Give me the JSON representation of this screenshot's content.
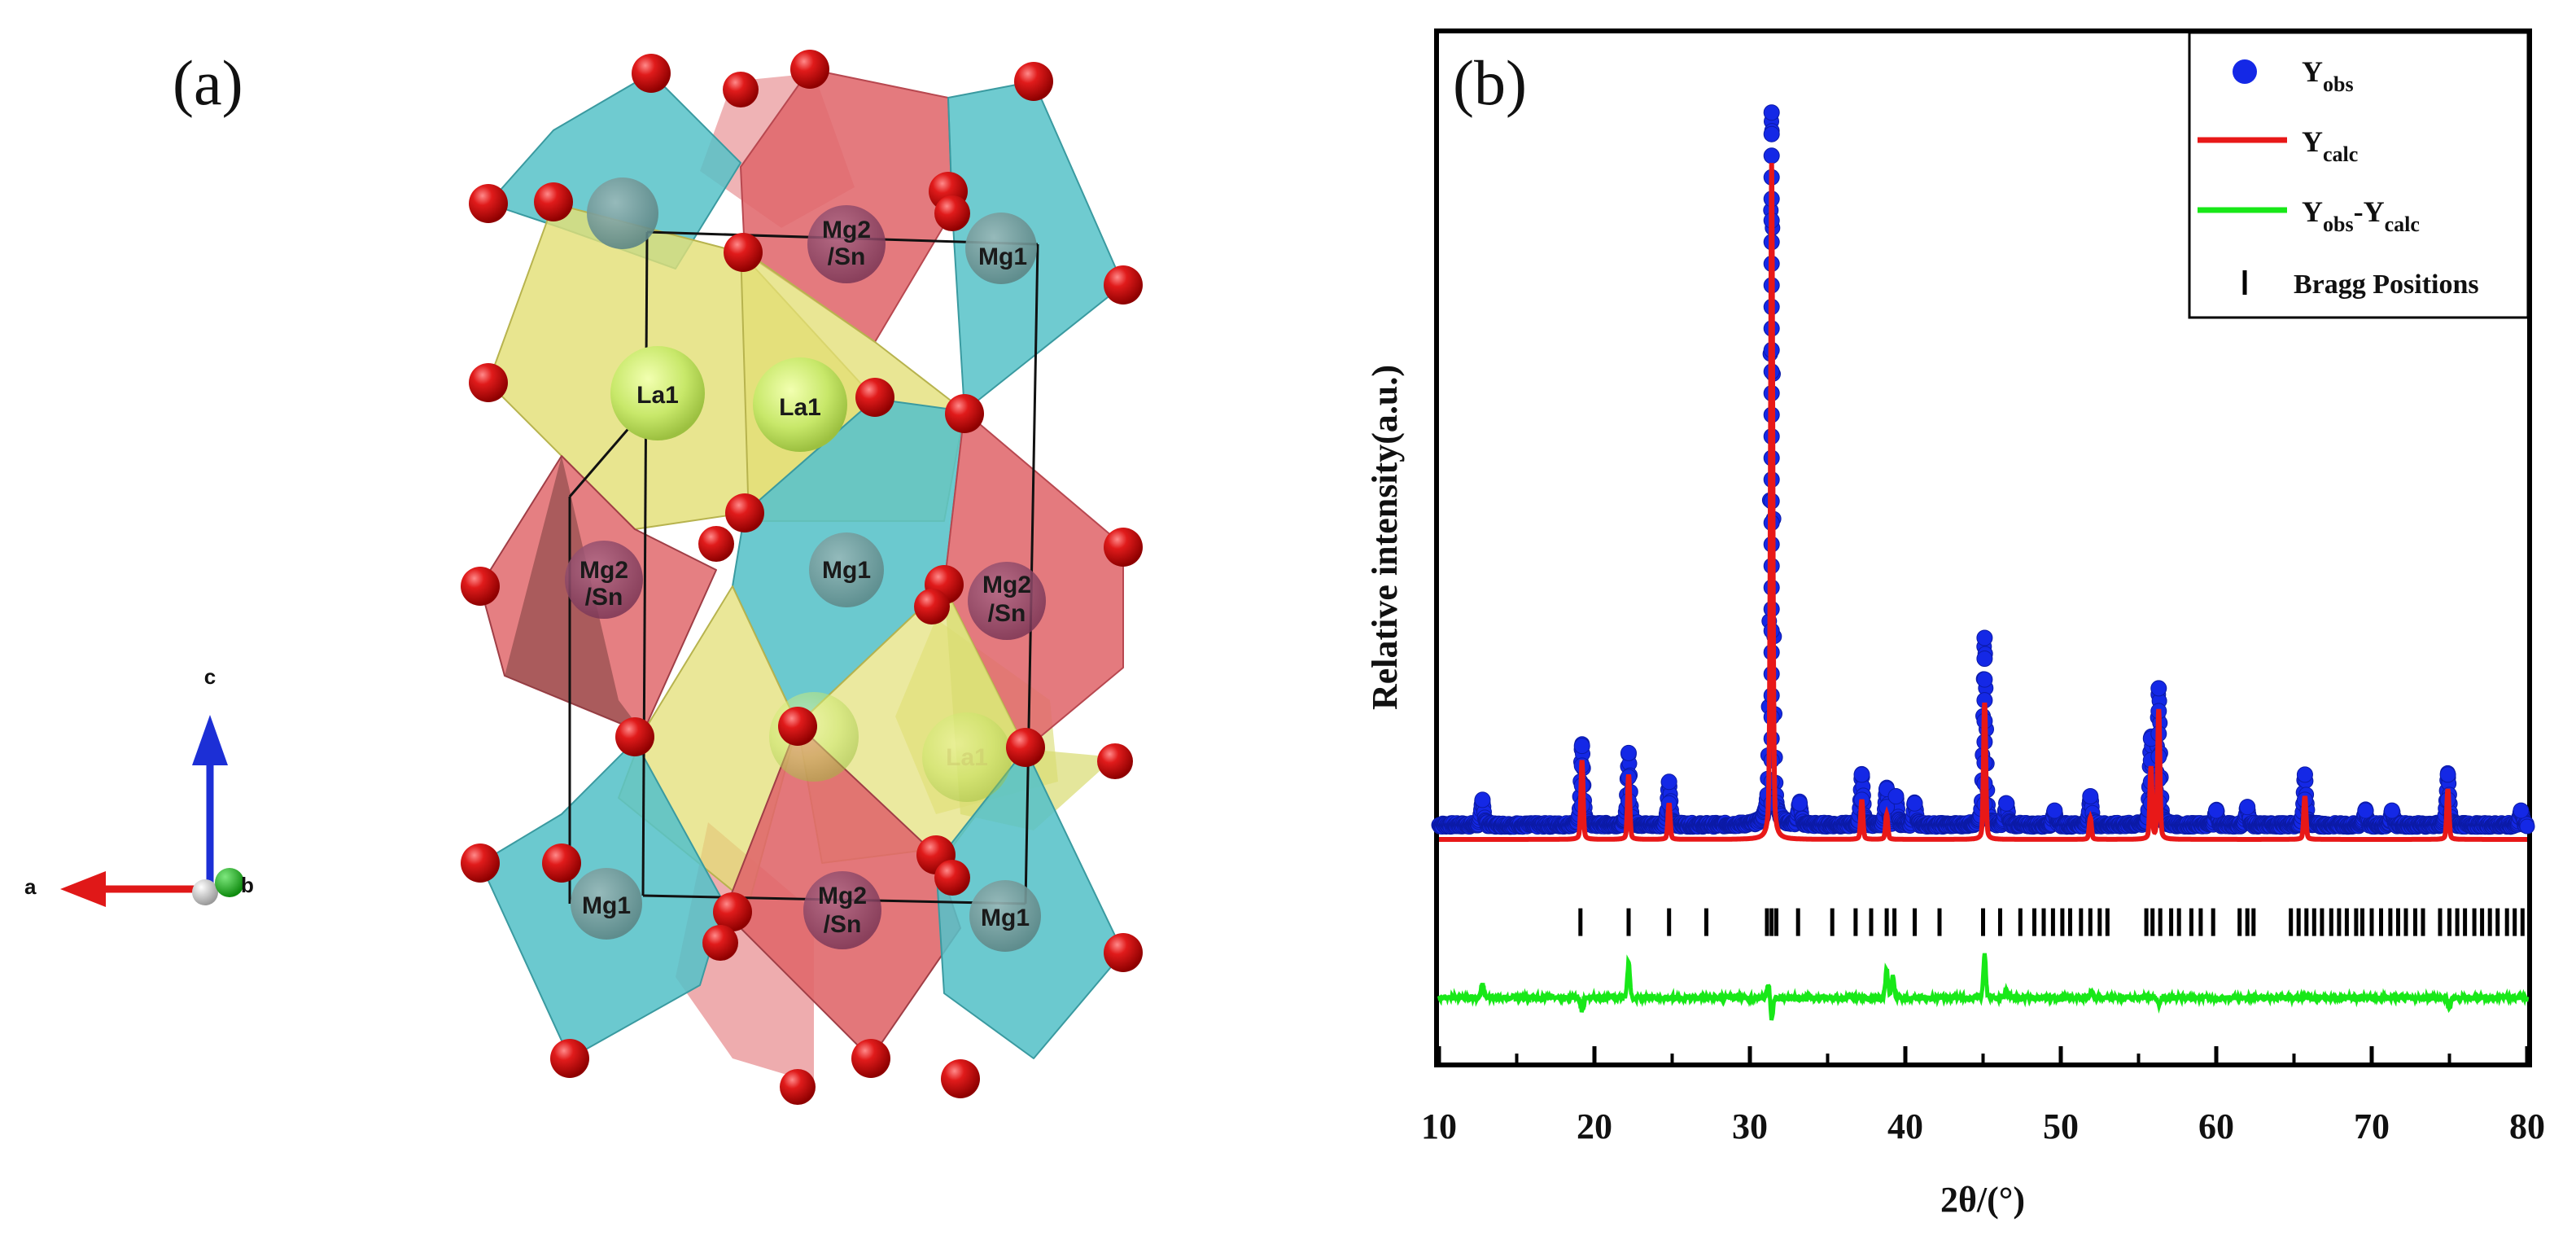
{
  "panel_a": {
    "label": "(a)",
    "axes": {
      "a": "a",
      "b": "b",
      "c": "c"
    },
    "sites": {
      "mg2_sn_top": [
        "Mg2",
        "/Sn"
      ],
      "mg1_top": "Mg1",
      "la1_left": "La1",
      "la1_right": "La1",
      "mg2_sn_mid_left": [
        "Mg2",
        "/Sn"
      ],
      "mg1_mid": "Mg1",
      "mg2_sn_mid_right": [
        "Mg2",
        "/Sn"
      ],
      "la1_back": "La1",
      "mg1_bottom_left": "Mg1",
      "mg2_sn_bottom": [
        "Mg2",
        "/Sn"
      ],
      "mg1_bottom_right": "Mg1"
    },
    "colors": {
      "mg1": "#56c2c8",
      "mg2_sn": "#e0686c",
      "la1": "#e3df76",
      "oxygen": "#d40f0f"
    }
  },
  "chart_data": {
    "type": "scatter",
    "panel_label": "(b)",
    "title": "",
    "xlabel": "2θ/(°)",
    "ylabel": "Relative intensity(a.u.)",
    "xlim": [
      10,
      80
    ],
    "ylim": [
      -0.33,
      1.1
    ],
    "xticks": [
      10,
      20,
      30,
      40,
      50,
      60,
      70,
      80
    ],
    "legend": {
      "position": "top-right",
      "entries": [
        {
          "main": "Y",
          "sub": "obs"
        },
        {
          "main": "Y",
          "sub": "calc"
        },
        {
          "main": "Y",
          "sub1": "obs",
          "sep": "-Y",
          "sub2": "calc"
        },
        {
          "main": "Bragg Positions"
        }
      ]
    },
    "series": [
      {
        "name": "Yobs",
        "style": "circles",
        "color": "#1428e6",
        "baseline": 0.0,
        "peaks": [
          [
            12.8,
            0.035
          ],
          [
            19.2,
            0.11
          ],
          [
            22.2,
            0.1
          ],
          [
            24.8,
            0.06
          ],
          [
            31.4,
            0.99
          ],
          [
            33.2,
            0.03
          ],
          [
            37.2,
            0.07
          ],
          [
            38.8,
            0.05
          ],
          [
            39.4,
            0.04
          ],
          [
            40.6,
            0.03
          ],
          [
            45.1,
            0.26
          ],
          [
            46.5,
            0.03
          ],
          [
            49.6,
            0.02
          ],
          [
            51.9,
            0.04
          ],
          [
            55.8,
            0.12
          ],
          [
            56.3,
            0.19
          ],
          [
            60.0,
            0.02
          ],
          [
            62.0,
            0.025
          ],
          [
            65.7,
            0.07
          ],
          [
            69.6,
            0.02
          ],
          [
            71.3,
            0.02
          ],
          [
            74.9,
            0.07
          ],
          [
            79.6,
            0.02
          ]
        ]
      },
      {
        "name": "Ycalc",
        "style": "line",
        "color": "#e81818",
        "baseline": -0.02,
        "peaks": [
          [
            19.2,
            0.11
          ],
          [
            22.2,
            0.09
          ],
          [
            24.8,
            0.05
          ],
          [
            31.4,
            0.94
          ],
          [
            37.2,
            0.055
          ],
          [
            38.8,
            0.035
          ],
          [
            45.1,
            0.19
          ],
          [
            51.9,
            0.03
          ],
          [
            55.8,
            0.1
          ],
          [
            56.3,
            0.18
          ],
          [
            65.7,
            0.06
          ],
          [
            74.9,
            0.07
          ]
        ]
      },
      {
        "name": "Yobs-Ycalc",
        "style": "line",
        "color": "#18e818",
        "baseline": -0.24,
        "features": [
          [
            12.8,
            0.02
          ],
          [
            19.2,
            -0.018
          ],
          [
            22.2,
            0.05
          ],
          [
            31.4,
            -0.03
          ],
          [
            31.2,
            0.02
          ],
          [
            38.8,
            0.04
          ],
          [
            39.2,
            0.03
          ],
          [
            45.1,
            0.06
          ],
          [
            46.5,
            0.01
          ],
          [
            52.0,
            0.01
          ],
          [
            56.3,
            -0.01
          ],
          [
            75.0,
            -0.015
          ]
        ]
      }
    ],
    "bragg_positions": [
      19.1,
      22.2,
      24.8,
      27.2,
      31.1,
      31.4,
      31.7,
      33.1,
      35.3,
      36.8,
      37.8,
      38.8,
      39.3,
      40.6,
      42.2,
      45.0,
      46.1,
      47.4,
      48.3,
      48.9,
      49.5,
      50.1,
      50.6,
      51.3,
      51.9,
      52.5,
      53.0,
      55.5,
      55.9,
      56.4,
      57.1,
      57.6,
      58.4,
      59.0,
      59.8,
      61.5,
      62.0,
      62.4,
      64.8,
      65.3,
      65.8,
      66.3,
      66.8,
      67.4,
      67.9,
      68.4,
      69.0,
      69.4,
      70.0,
      70.6,
      71.2,
      71.7,
      72.2,
      72.8,
      73.3,
      74.4,
      75.0,
      75.5,
      76.0,
      76.6,
      77.1,
      77.6,
      78.1,
      78.7,
      79.2,
      79.7
    ],
    "bragg_level": -0.135
  }
}
